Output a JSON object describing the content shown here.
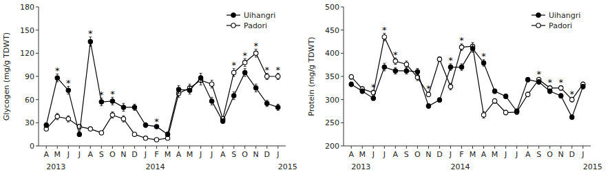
{
  "chart_data": [
    {
      "type": "line",
      "y_label": "Glycogen (mg/g TDWT)",
      "categories": [
        "A",
        "M",
        "J",
        "J",
        "A",
        "S",
        "O",
        "N",
        "D",
        "J",
        "F",
        "M",
        "A",
        "M",
        "J",
        "J",
        "A",
        "S",
        "O",
        "N",
        "D",
        "J"
      ],
      "year_labels": [
        {
          "label": "2013",
          "index": 0
        },
        {
          "label": "2014",
          "index": 9
        },
        {
          "label": "2015",
          "index": 21
        }
      ],
      "series": [
        {
          "name": "Uihangri",
          "color": "black",
          "marker": "circle",
          "values": [
            27,
            88,
            72,
            15,
            135,
            57,
            58,
            50,
            50,
            27,
            25,
            15,
            73,
            72,
            88,
            58,
            32,
            65,
            95,
            75,
            55,
            50
          ],
          "errors": [
            3,
            5,
            5,
            3,
            6,
            5,
            5,
            5,
            4,
            3,
            2,
            3,
            5,
            5,
            6,
            5,
            3,
            5,
            5,
            5,
            4,
            4
          ]
        },
        {
          "name": "Padori",
          "color": "black",
          "marker": "open-circle",
          "values": [
            22,
            38,
            35,
            25,
            22,
            17,
            40,
            35,
            15,
            10,
            8,
            10,
            68,
            75,
            85,
            80,
            35,
            95,
            108,
            120,
            90,
            90
          ],
          "errors": [
            2,
            4,
            4,
            3,
            2,
            2,
            4,
            4,
            2,
            2,
            2,
            2,
            5,
            5,
            6,
            5,
            3,
            5,
            5,
            5,
            4,
            4
          ]
        }
      ],
      "annotations": [
        {
          "text": "*",
          "index": 1
        },
        {
          "text": "*",
          "index": 2
        },
        {
          "text": "*",
          "index": 4
        },
        {
          "text": "*",
          "index": 5
        },
        {
          "text": "*",
          "index": 6
        },
        {
          "text": "*",
          "index": 10
        },
        {
          "text": "*",
          "index": 17
        },
        {
          "text": "*",
          "index": 18
        },
        {
          "text": "*",
          "index": 19
        },
        {
          "text": "*",
          "index": 20
        },
        {
          "text": "*",
          "index": 21
        }
      ],
      "ylim": [
        0,
        180
      ],
      "yticks": [
        0,
        30,
        60,
        90,
        120,
        150,
        180
      ],
      "grid": false,
      "legend": "upper right"
    },
    {
      "type": "line",
      "y_label": "Protein (mg/g TDWT)",
      "categories": [
        "A",
        "M",
        "J",
        "J",
        "A",
        "S",
        "O",
        "N",
        "D",
        "J",
        "F",
        "M",
        "A",
        "M",
        "J",
        "J",
        "A",
        "S",
        "O",
        "N",
        "D",
        "J"
      ],
      "year_labels": [
        {
          "label": "2013",
          "index": 0
        },
        {
          "label": "2014",
          "index": 9
        },
        {
          "label": "2015",
          "index": 21
        }
      ],
      "series": [
        {
          "name": "Uihangri",
          "color": "black",
          "marker": "circle",
          "values": [
            333,
            318,
            303,
            370,
            362,
            362,
            360,
            286,
            299,
            370,
            370,
            410,
            379,
            318,
            307,
            275,
            343,
            338,
            318,
            308,
            262,
            328
          ],
          "errors": [
            5,
            5,
            5,
            8,
            7,
            7,
            7,
            5,
            5,
            7,
            7,
            8,
            7,
            5,
            5,
            5,
            5,
            5,
            5,
            5,
            5,
            5
          ]
        },
        {
          "name": "Padori",
          "color": "black",
          "marker": "open-circle",
          "values": [
            349,
            323,
            315,
            435,
            383,
            376,
            348,
            311,
            387,
            328,
            413,
            415,
            267,
            297,
            272,
            273,
            311,
            343,
            325,
            325,
            300,
            333
          ],
          "errors": [
            5,
            5,
            5,
            8,
            7,
            7,
            7,
            5,
            5,
            7,
            7,
            8,
            7,
            5,
            5,
            5,
            5,
            5,
            5,
            5,
            5,
            5
          ]
        }
      ],
      "annotations": [
        {
          "text": "*",
          "index": 2
        },
        {
          "text": "*",
          "index": 3
        },
        {
          "text": "*",
          "index": 4
        },
        {
          "text": "*",
          "index": 7
        },
        {
          "text": "*",
          "index": 9
        },
        {
          "text": "*",
          "index": 10
        },
        {
          "text": "*",
          "index": 12
        },
        {
          "text": "*",
          "index": 17
        },
        {
          "text": "*",
          "index": 18
        },
        {
          "text": "*",
          "index": 19
        },
        {
          "text": "*",
          "index": 20
        }
      ],
      "ylim": [
        200,
        500
      ],
      "yticks": [
        200,
        250,
        300,
        350,
        400,
        450,
        500
      ],
      "grid": false,
      "legend": "upper right"
    }
  ]
}
